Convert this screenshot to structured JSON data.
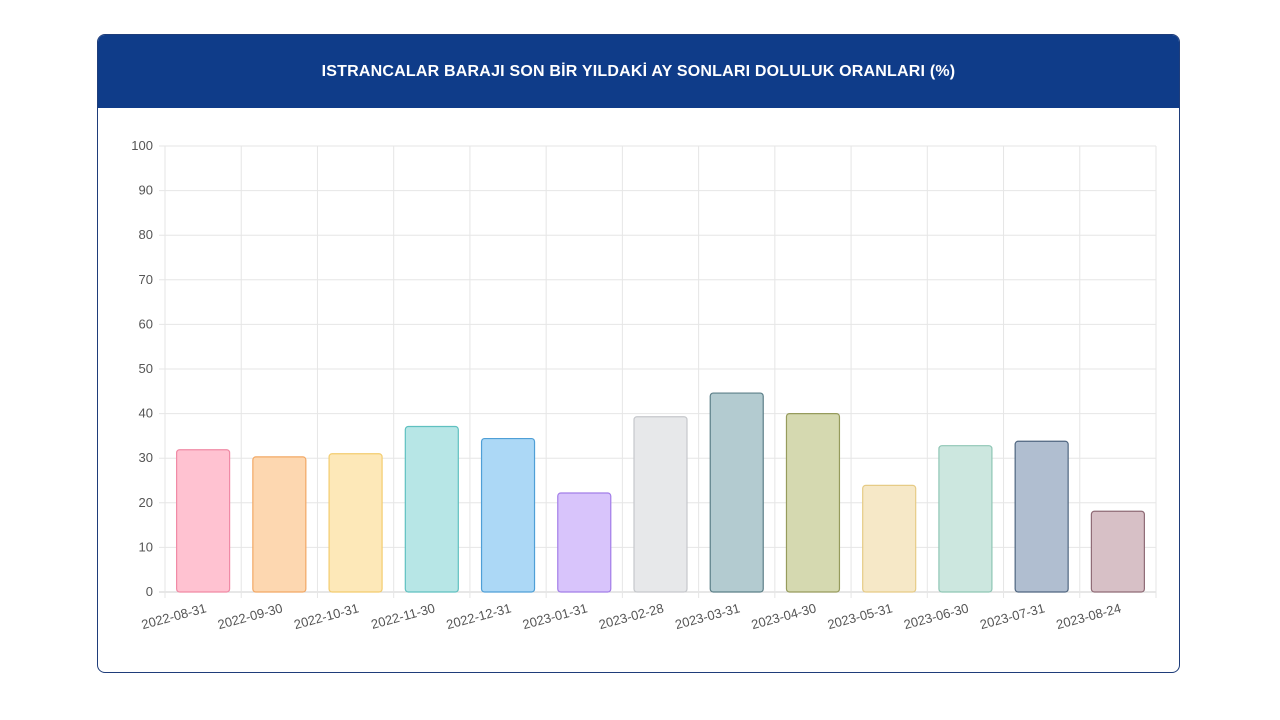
{
  "header": {
    "title": "ISTRANCALAR BARAJI SON BİR YILDAKİ AY SONLARI DOLULUK ORANLARI (%)"
  },
  "chart_data": {
    "type": "bar",
    "title": "ISTRANCALAR BARAJI SON BİR YILDAKİ AY SONLARI DOLULUK ORANLARI (%)",
    "xlabel": "",
    "ylabel": "",
    "ylim": [
      0,
      100
    ],
    "yticks": [
      0,
      10,
      20,
      30,
      40,
      50,
      60,
      70,
      80,
      90,
      100
    ],
    "grid": true,
    "legend": "none",
    "categories": [
      "2022-08-31",
      "2022-09-30",
      "2022-10-31",
      "2022-11-30",
      "2022-12-31",
      "2023-01-31",
      "2023-02-28",
      "2023-03-31",
      "2023-04-30",
      "2023-05-31",
      "2023-06-30",
      "2023-07-31",
      "2023-08-24"
    ],
    "values": [
      31.9,
      30.3,
      31.0,
      37.1,
      34.4,
      22.2,
      39.3,
      44.6,
      40.0,
      23.9,
      32.8,
      33.8,
      18.1
    ],
    "colors": [
      {
        "fill": "#ffc2d1",
        "stroke": "#f08aa5"
      },
      {
        "fill": "#fdd7b0",
        "stroke": "#f2a865"
      },
      {
        "fill": "#fde8b8",
        "stroke": "#f3cc6e"
      },
      {
        "fill": "#b7e6e6",
        "stroke": "#5fc0c0"
      },
      {
        "fill": "#acd8f6",
        "stroke": "#4f9fd6"
      },
      {
        "fill": "#d8c4fb",
        "stroke": "#a27de8"
      },
      {
        "fill": "#e7e8ea",
        "stroke": "#c6c8cc"
      },
      {
        "fill": "#b3cbd0",
        "stroke": "#5c7f88"
      },
      {
        "fill": "#d5d9b0",
        "stroke": "#969b5c"
      },
      {
        "fill": "#f6e8c7",
        "stroke": "#e6cb86"
      },
      {
        "fill": "#cce7df",
        "stroke": "#8fc6b5"
      },
      {
        "fill": "#b0bed0",
        "stroke": "#4f6680"
      },
      {
        "fill": "#d7c0c6",
        "stroke": "#8f6b76"
      }
    ]
  }
}
